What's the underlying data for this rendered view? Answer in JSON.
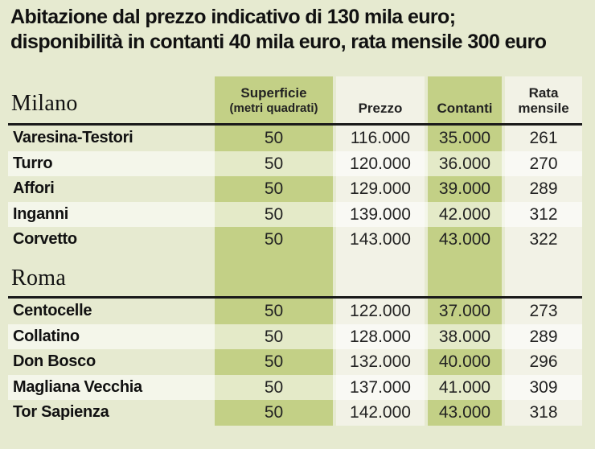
{
  "title": {
    "line1": "Abitazione dal prezzo indicativo di 130 mila euro;",
    "line2": "disponibilità in contanti 40 mila euro, rata mensile 300 euro"
  },
  "colors": {
    "background": "#e6ead0",
    "green_column": "#c3d086",
    "light_column": "#f2f2e6"
  },
  "chart_data": {
    "type": "table",
    "columns": {
      "superficie_line1": "Superficie",
      "superficie_line2": "(metri quadrati)",
      "prezzo": "Prezzo",
      "contanti": "Contanti",
      "rata_line1": "Rata",
      "rata_line2": "mensile"
    },
    "groups": [
      {
        "city": "Milano",
        "rows": [
          {
            "zona": "Varesina-Testori",
            "superficie": "50",
            "prezzo": "116.000",
            "contanti": "35.000",
            "rata": "261"
          },
          {
            "zona": "Turro",
            "superficie": "50",
            "prezzo": "120.000",
            "contanti": "36.000",
            "rata": "270"
          },
          {
            "zona": "Affori",
            "superficie": "50",
            "prezzo": "129.000",
            "contanti": "39.000",
            "rata": "289"
          },
          {
            "zona": "Inganni",
            "superficie": "50",
            "prezzo": "139.000",
            "contanti": "42.000",
            "rata": "312"
          },
          {
            "zona": "Corvetto",
            "superficie": "50",
            "prezzo": "143.000",
            "contanti": "43.000",
            "rata": "322"
          }
        ]
      },
      {
        "city": "Roma",
        "rows": [
          {
            "zona": "Centocelle",
            "superficie": "50",
            "prezzo": "122.000",
            "contanti": "37.000",
            "rata": "273"
          },
          {
            "zona": "Collatino",
            "superficie": "50",
            "prezzo": "128.000",
            "contanti": "38.000",
            "rata": "289"
          },
          {
            "zona": "Don Bosco",
            "superficie": "50",
            "prezzo": "132.000",
            "contanti": "40.000",
            "rata": "296"
          },
          {
            "zona": "Magliana Vecchia",
            "superficie": "50",
            "prezzo": "137.000",
            "contanti": "41.000",
            "rata": "309"
          },
          {
            "zona": "Tor Sapienza",
            "superficie": "50",
            "prezzo": "142.000",
            "contanti": "43.000",
            "rata": "318"
          }
        ]
      }
    ]
  }
}
